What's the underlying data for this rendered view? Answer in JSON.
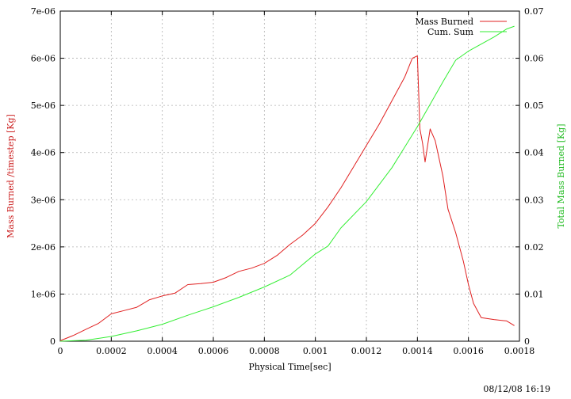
{
  "chart_data": {
    "type": "line",
    "xlabel": "Physical Time[sec]",
    "ylabel": "Mass Burned /timestep [Kg]",
    "y2label": "Total Mass Burned [Kg]",
    "xlim": [
      0,
      0.0018
    ],
    "ylim": [
      0,
      7e-06
    ],
    "y2lim": [
      0,
      0.07
    ],
    "grid": true,
    "legend_position": "top-right",
    "x_ticks": [
      "0",
      "0.0002",
      "0.0004",
      "0.0006",
      "0.0008",
      "0.001",
      "0.0012",
      "0.0014",
      "0.0016",
      "0.0018"
    ],
    "y_ticks": [
      "0",
      "1e-06",
      "2e-06",
      "3e-06",
      "4e-06",
      "5e-06",
      "6e-06",
      "7e-06"
    ],
    "y2_ticks": [
      "0",
      "0.01",
      "0.02",
      "0.03",
      "0.04",
      "0.05",
      "0.06",
      "0.07"
    ],
    "series": [
      {
        "name": "Mass Burned",
        "color": "#e02020",
        "axis": "left",
        "points": [
          [
            0,
            1e-08
          ],
          [
            5e-05,
            1.2e-07
          ],
          [
            0.0001,
            2.5e-07
          ],
          [
            0.00015,
            3.8e-07
          ],
          [
            0.0002,
            5.8e-07
          ],
          [
            0.00025,
            6.5e-07
          ],
          [
            0.0003,
            7.2e-07
          ],
          [
            0.00035,
            8.8e-07
          ],
          [
            0.0004,
            9.6e-07
          ],
          [
            0.00045,
            1.02e-06
          ],
          [
            0.0005,
            1.2e-06
          ],
          [
            0.00055,
            1.22e-06
          ],
          [
            0.0006,
            1.25e-06
          ],
          [
            0.00065,
            1.35e-06
          ],
          [
            0.0007,
            1.48e-06
          ],
          [
            0.00075,
            1.55e-06
          ],
          [
            0.0008,
            1.65e-06
          ],
          [
            0.00085,
            1.82e-06
          ],
          [
            0.0009,
            2.05e-06
          ],
          [
            0.00095,
            2.25e-06
          ],
          [
            0.001,
            2.5e-06
          ],
          [
            0.00105,
            2.85e-06
          ],
          [
            0.0011,
            3.25e-06
          ],
          [
            0.00115,
            3.7e-06
          ],
          [
            0.0012,
            4.15e-06
          ],
          [
            0.00125,
            4.6e-06
          ],
          [
            0.0013,
            5.1e-06
          ],
          [
            0.00135,
            5.6e-06
          ],
          [
            0.00138,
            6e-06
          ],
          [
            0.0014,
            6.05e-06
          ],
          [
            0.00141,
            4.5e-06
          ],
          [
            0.00142,
            4.2e-06
          ],
          [
            0.00143,
            3.8e-06
          ],
          [
            0.00145,
            4.5e-06
          ],
          [
            0.00147,
            4.25e-06
          ],
          [
            0.0015,
            3.5e-06
          ],
          [
            0.00152,
            2.8e-06
          ],
          [
            0.00155,
            2.3e-06
          ],
          [
            0.00158,
            1.7e-06
          ],
          [
            0.0016,
            1.2e-06
          ],
          [
            0.00162,
            8e-07
          ],
          [
            0.00165,
            5e-07
          ],
          [
            0.0017,
            4.6e-07
          ],
          [
            0.00175,
            4.3e-07
          ],
          [
            0.00178,
            3.3e-07
          ]
        ]
      },
      {
        "name": "Cum. Sum",
        "color": "#33ee33",
        "axis": "right",
        "points": [
          [
            0,
            0
          ],
          [
            0.0001,
            0.0002
          ],
          [
            0.0002,
            0.001
          ],
          [
            0.0003,
            0.0022
          ],
          [
            0.0004,
            0.0036
          ],
          [
            0.0005,
            0.0055
          ],
          [
            0.0006,
            0.0073
          ],
          [
            0.0007,
            0.0093
          ],
          [
            0.0008,
            0.0115
          ],
          [
            0.0009,
            0.014
          ],
          [
            0.001,
            0.0185
          ],
          [
            0.00105,
            0.0202
          ],
          [
            0.0011,
            0.024
          ],
          [
            0.0012,
            0.0296
          ],
          [
            0.0013,
            0.0368
          ],
          [
            0.0014,
            0.0455
          ],
          [
            0.0015,
            0.055
          ],
          [
            0.00155,
            0.0596
          ],
          [
            0.0016,
            0.0615
          ],
          [
            0.0017,
            0.0645
          ],
          [
            0.00175,
            0.0662
          ],
          [
            0.00178,
            0.0668
          ]
        ]
      }
    ]
  },
  "timestamp": "08/12/08 16:19"
}
